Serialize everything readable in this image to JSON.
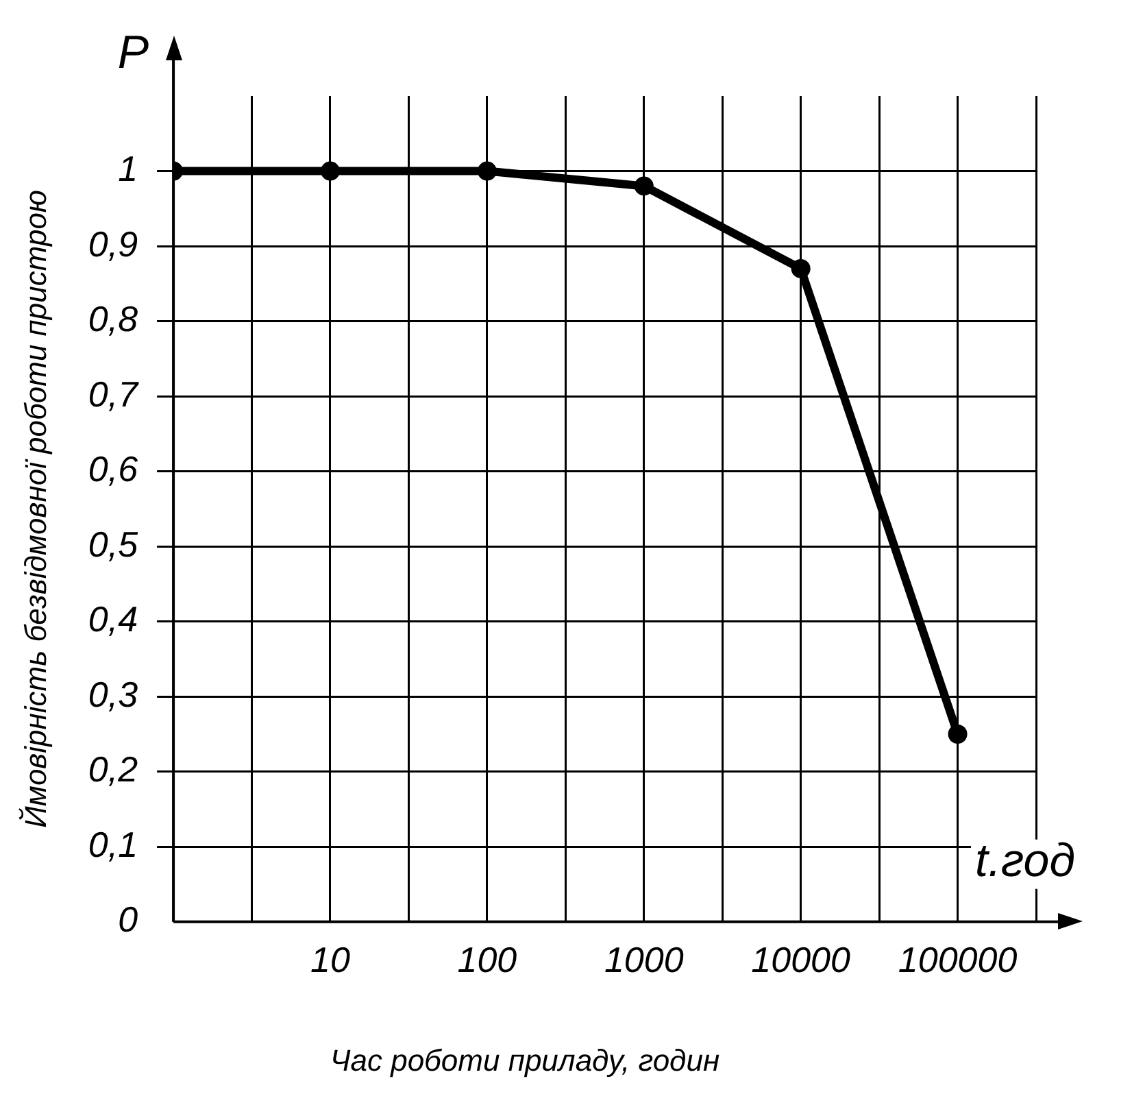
{
  "chart_data": {
    "type": "line",
    "xlabel": "Час роботи приладу, годин",
    "ylabel": "Ймовірність безвідмовної роботи пристрою",
    "annotations": [
      "P",
      "t.год"
    ],
    "categories": [
      null,
      "10",
      "100",
      "1000",
      "10000",
      "100000"
    ],
    "series": [
      {
        "color": "#000000",
        "values": [
          1,
          1,
          1,
          0.98,
          0.87,
          0.25
        ]
      }
    ],
    "ylim": [
      0,
      1.1
    ],
    "yticks": [
      {
        "value": 0,
        "label": "0"
      },
      {
        "value": 0.1,
        "label": "0,1"
      },
      {
        "value": 0.2,
        "label": "0,2"
      },
      {
        "value": 0.3,
        "label": "0,3"
      },
      {
        "value": 0.4,
        "label": "0,4"
      },
      {
        "value": 0.5,
        "label": "0,5"
      },
      {
        "value": 0.6,
        "label": "0,6"
      },
      {
        "value": 0.7,
        "label": "0,7"
      },
      {
        "value": 0.8,
        "label": "0,8"
      },
      {
        "value": 0.9,
        "label": "0,9"
      },
      {
        "value": 1,
        "label": "1"
      }
    ],
    "grid": true,
    "legend": false,
    "marker": "circle",
    "line_style": "solid"
  }
}
